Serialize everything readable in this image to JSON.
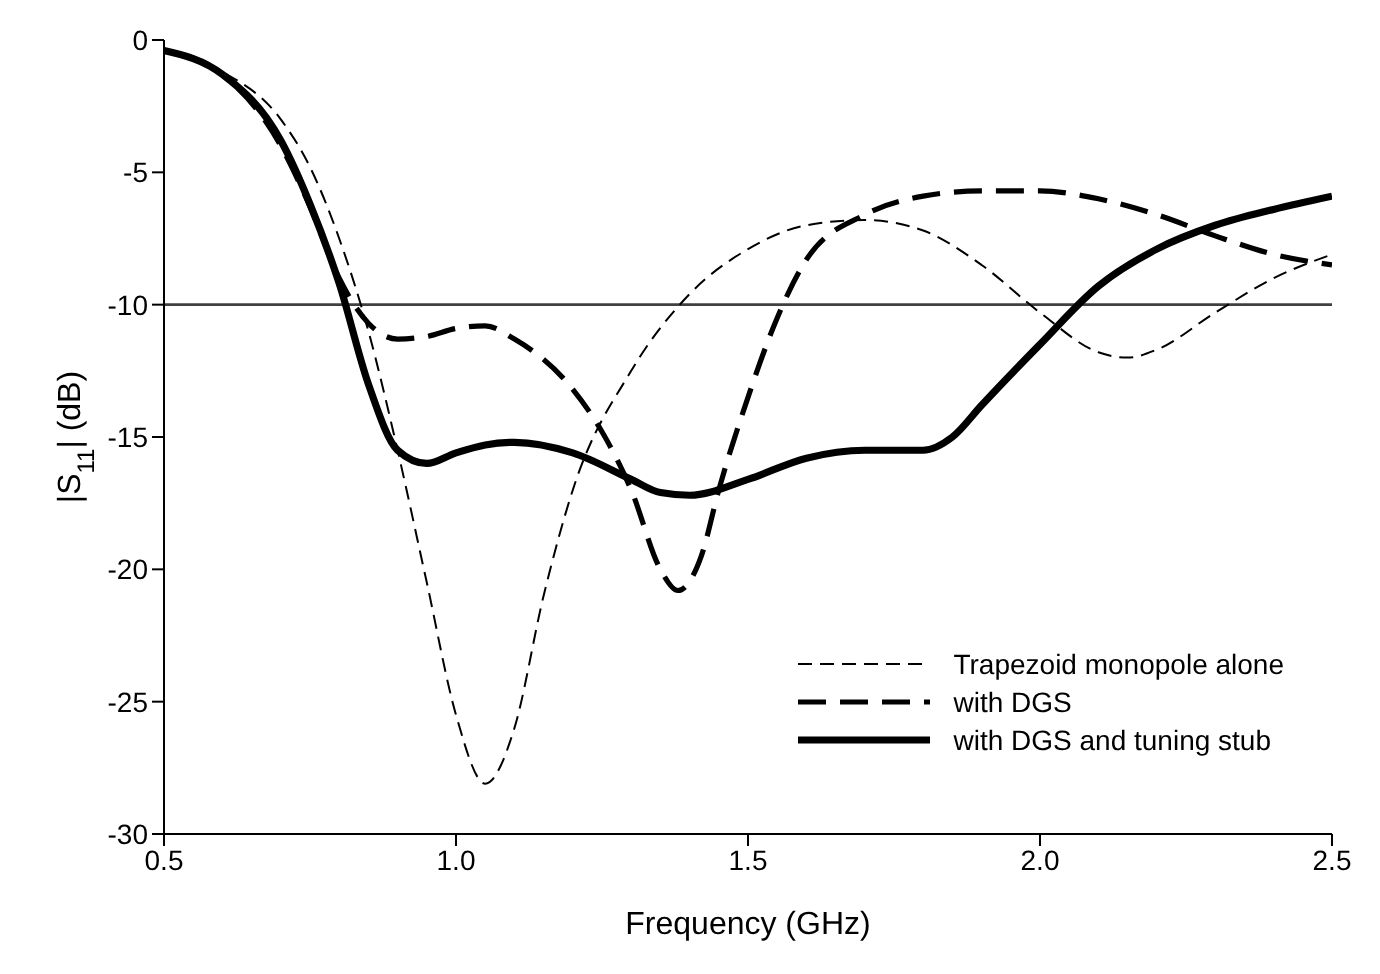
{
  "chart_data": {
    "type": "line",
    "xlabel": "Frequency (GHz)",
    "ylabel": "|S$_{11}$| (dB)",
    "xlim": [
      0.5,
      2.5
    ],
    "xticks": [
      0.5,
      {
        "value": 1,
        "label": "1.0"
      },
      1.5,
      {
        "value": 2,
        "label": "2.0"
      },
      2.5
    ],
    "ylim": [
      -30,
      0
    ],
    "yticks": [
      -30,
      -25,
      -20,
      -15,
      -10,
      -5,
      0
    ],
    "grid": false,
    "legend": "bottom right",
    "marker": "none",
    "ref_lines": [
      {
        "axis": "y",
        "value": -10,
        "color": "#404040"
      }
    ],
    "series": [
      {
        "name": "Trapezoid monopole alone",
        "color": "#000000",
        "line_style": "dashed",
        "x": [
          0.5,
          0.6,
          0.7,
          0.75,
          0.8,
          0.85,
          0.9,
          0.95,
          1.0,
          1.05,
          1.1,
          1.15,
          1.2,
          1.3,
          1.4,
          1.5,
          1.6,
          1.7,
          1.8,
          1.9,
          2.0,
          2.1,
          2.15,
          2.2,
          2.3,
          2.4,
          2.5
        ],
        "values": [
          -0.4,
          -1.2,
          -3.0,
          -4.8,
          -7.5,
          -11,
          -15.5,
          -20.5,
          -25.5,
          -28.1,
          -26,
          -21,
          -17,
          -12.5,
          -9.6,
          -7.9,
          -7.0,
          -6.8,
          -7.2,
          -8.5,
          -10.3,
          -11.8,
          -12.0,
          -11.7,
          -10.3,
          -9.0,
          -8.1
        ]
      },
      {
        "name": "with DGS",
        "color": "#000000",
        "line_style": "dashed",
        "x": [
          0.5,
          0.6,
          0.7,
          0.75,
          0.8,
          0.85,
          0.9,
          0.95,
          1.0,
          1.05,
          1.1,
          1.2,
          1.25,
          1.3,
          1.35,
          1.38,
          1.42,
          1.45,
          1.5,
          1.55,
          1.6,
          1.7,
          1.8,
          1.9,
          2.0,
          2.1,
          2.2,
          2.3,
          2.4,
          2.5
        ],
        "values": [
          -0.4,
          -1.3,
          -4.0,
          -6.3,
          -9.0,
          -10.7,
          -11.3,
          -11.2,
          -10.9,
          -10.8,
          -11.3,
          -13.2,
          -14.8,
          -17.0,
          -20.0,
          -20.8,
          -19.5,
          -17,
          -13.5,
          -10.5,
          -8.3,
          -6.6,
          -5.9,
          -5.7,
          -5.7,
          -6.0,
          -6.6,
          -7.4,
          -8.1,
          -8.5
        ]
      },
      {
        "name": "with DGS and tuning stub",
        "color": "#000000",
        "line_style": "solid",
        "x": [
          0.5,
          0.6,
          0.7,
          0.75,
          0.8,
          0.85,
          0.9,
          0.95,
          1.0,
          1.05,
          1.1,
          1.2,
          1.3,
          1.35,
          1.4,
          1.5,
          1.6,
          1.7,
          1.8,
          1.85,
          1.9,
          2.0,
          2.1,
          2.2,
          2.3,
          2.4,
          2.5
        ],
        "values": [
          -0.4,
          -1.3,
          -3.8,
          -6.2,
          -9.2,
          -13.0,
          -15.5,
          -16.0,
          -15.6,
          -15.3,
          -15.2,
          -15.6,
          -16.6,
          -17.1,
          -17.2,
          -16.6,
          -15.8,
          -15.5,
          -15.5,
          -15.0,
          -13.8,
          -11.5,
          -9.3,
          -7.9,
          -7.0,
          -6.4,
          -5.9
        ]
      }
    ]
  }
}
